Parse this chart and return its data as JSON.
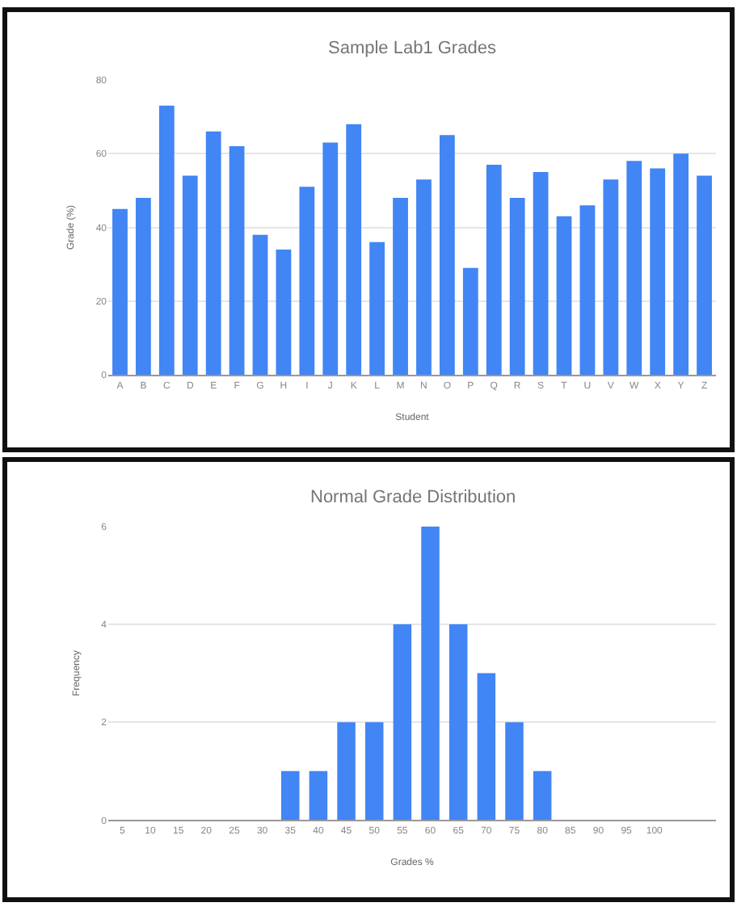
{
  "chart_data": [
    {
      "type": "bar",
      "title": "Sample Lab1 Grades",
      "xlabel": "Student",
      "ylabel": "Grade (%)",
      "categories": [
        "A",
        "B",
        "C",
        "D",
        "E",
        "F",
        "G",
        "H",
        "I",
        "J",
        "K",
        "L",
        "M",
        "N",
        "O",
        "P",
        "Q",
        "R",
        "S",
        "T",
        "U",
        "V",
        "W",
        "X",
        "Y",
        "Z"
      ],
      "values": [
        45,
        48,
        73,
        54,
        66,
        62,
        38,
        34,
        51,
        63,
        68,
        36,
        48,
        53,
        65,
        29,
        57,
        48,
        55,
        43,
        46,
        53,
        58,
        56,
        60,
        54
      ],
      "color": "#4285f4",
      "ylim": [
        0,
        80
      ],
      "yticks": [
        0,
        20,
        40,
        60,
        80
      ],
      "grid": "y"
    },
    {
      "type": "bar",
      "title": "Normal Grade Distribution",
      "xlabel": "Grades %",
      "ylabel": "Frequency",
      "categories": [
        "5",
        "10",
        "15",
        "20",
        "25",
        "30",
        "35",
        "40",
        "45",
        "50",
        "55",
        "60",
        "65",
        "70",
        "75",
        "80",
        "85",
        "90",
        "95",
        "100"
      ],
      "values": [
        0,
        0,
        0,
        0,
        0,
        0,
        1,
        1,
        2,
        2,
        4,
        6,
        4,
        3,
        2,
        1,
        0,
        0,
        0,
        0
      ],
      "color": "#4285f4",
      "ylim": [
        0,
        6
      ],
      "yticks": [
        0,
        2,
        4,
        6
      ],
      "grid": "y"
    }
  ]
}
